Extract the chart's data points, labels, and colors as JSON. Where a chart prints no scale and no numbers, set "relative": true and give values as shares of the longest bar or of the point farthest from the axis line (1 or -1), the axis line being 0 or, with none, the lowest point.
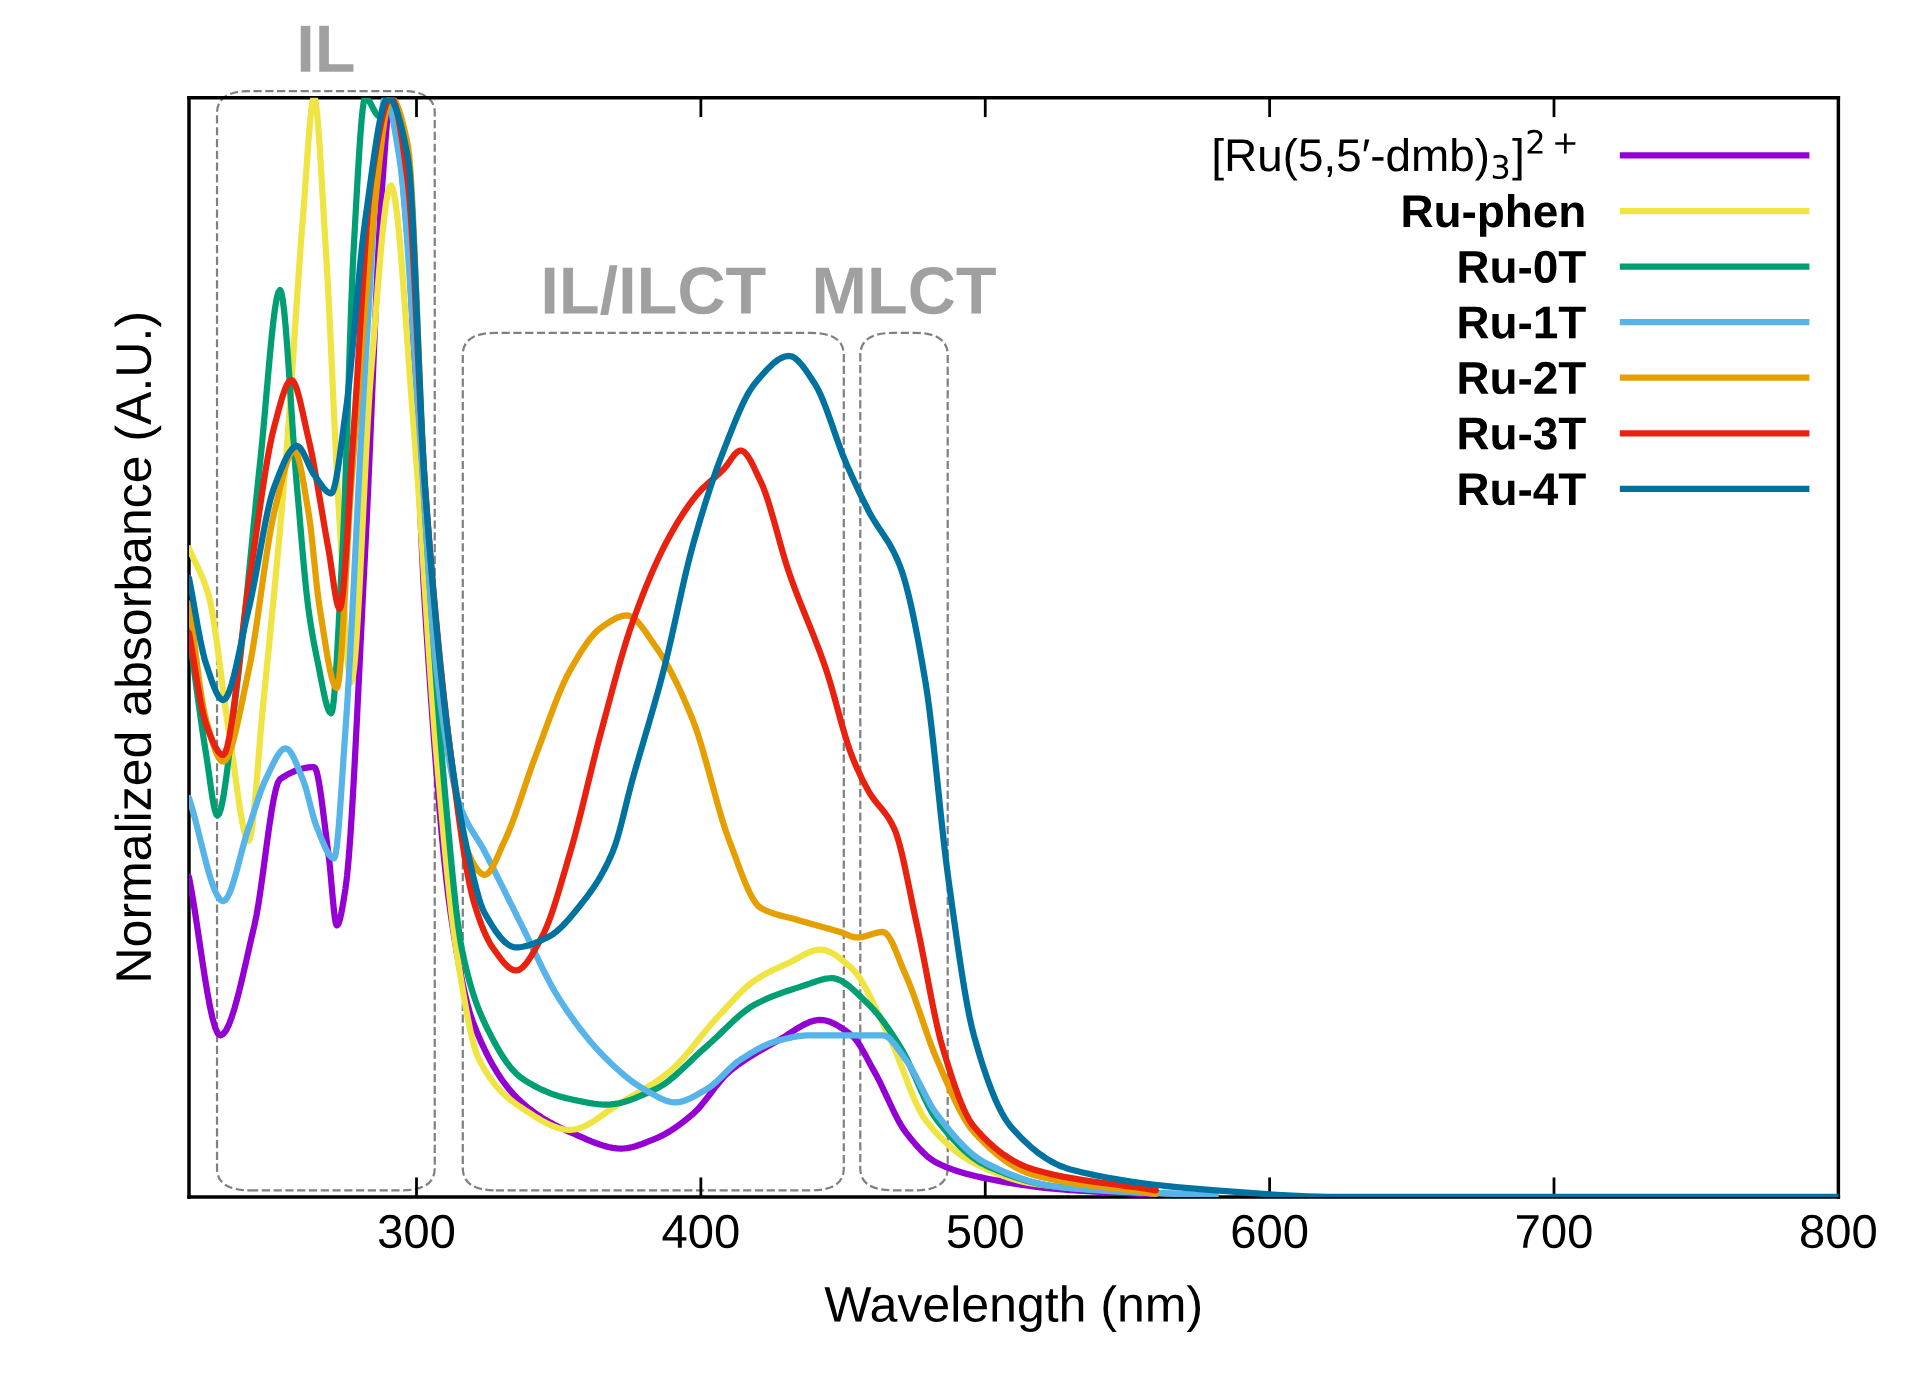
{
  "chart_data": {
    "type": "line",
    "relative": true,
    "xlabel": "Wavelength (nm)",
    "ylabel": "Normalized absorbance (A.U.)",
    "xlim": [
      220,
      800
    ],
    "xticks": [
      300,
      400,
      500,
      600,
      700,
      800
    ],
    "grid": false,
    "legend": "top right",
    "line_style": "solid",
    "tick_labels": "x",
    "annotations": [
      "IL",
      "IL/ILCT",
      "MLCT"
    ],
    "series": [
      {
        "name": "[Ru(5,5′-dmb)$_{3}$]$^{2+}$",
        "color": "#9400d3",
        "x": [
          220,
          231,
          243,
          252,
          264,
          269,
          272,
          275,
          282,
          288,
          291,
          297,
          303,
          312,
          320,
          337,
          354,
          372,
          384,
          397,
          410,
          427,
          442,
          453,
          461,
          472,
          483,
          500,
          526,
          560
        ],
        "values": [
          0.291,
          0.147,
          0.247,
          0.38,
          0.391,
          0.313,
          0.247,
          0.28,
          0.59,
          0.922,
          1.0,
          0.867,
          0.535,
          0.258,
          0.158,
          0.086,
          0.059,
          0.044,
          0.053,
          0.075,
          0.114,
          0.142,
          0.161,
          0.147,
          0.114,
          0.059,
          0.031,
          0.017,
          0.007,
          0.002
        ]
      },
      {
        "name": "Ru-phen",
        "color": "#f0e442",
        "x": [
          220,
          227,
          234,
          241,
          246,
          254,
          260,
          264,
          268,
          273,
          277,
          284,
          291,
          299,
          307,
          314,
          322,
          337,
          354,
          372,
          389,
          406,
          419,
          431,
          442,
          453,
          466,
          479,
          496,
          517,
          560
        ],
        "values": [
          0.59,
          0.546,
          0.424,
          0.324,
          0.446,
          0.668,
          0.889,
          1.0,
          0.867,
          0.612,
          0.468,
          0.75,
          0.92,
          0.701,
          0.403,
          0.225,
          0.125,
          0.081,
          0.061,
          0.086,
          0.114,
          0.164,
          0.197,
          0.213,
          0.225,
          0.208,
          0.147,
          0.07,
          0.031,
          0.012,
          0.003
        ]
      },
      {
        "name": "Ru-0T",
        "color": "#009e73",
        "x": [
          220,
          226,
          230,
          237,
          245,
          252,
          258,
          262,
          265,
          270,
          274,
          278,
          282,
          287,
          291,
          297,
          303,
          310,
          316,
          324,
          337,
          354,
          367,
          384,
          402,
          419,
          436,
          446,
          459,
          470,
          483,
          500,
          526,
          581
        ],
        "values": [
          0.513,
          0.403,
          0.347,
          0.468,
          0.668,
          0.825,
          0.645,
          0.535,
          0.49,
          0.44,
          0.589,
          0.867,
          1.0,
          0.983,
          1.0,
          0.889,
          0.623,
          0.368,
          0.225,
          0.158,
          0.108,
          0.089,
          0.084,
          0.098,
          0.137,
          0.175,
          0.192,
          0.199,
          0.175,
          0.137,
          0.07,
          0.029,
          0.009,
          0.001
        ]
      },
      {
        "name": "Ru-1T",
        "color": "#56b4e9",
        "x": [
          220,
          232,
          241,
          247,
          254,
          260,
          265,
          271,
          275,
          282,
          289,
          294,
          301,
          307,
          315,
          324,
          337,
          350,
          367,
          380,
          391,
          402,
          414,
          427,
          438,
          453,
          464,
          472,
          483,
          500,
          526,
          581
        ],
        "values": [
          0.363,
          0.269,
          0.336,
          0.38,
          0.408,
          0.38,
          0.336,
          0.308,
          0.424,
          0.757,
          1.0,
          0.945,
          0.701,
          0.48,
          0.358,
          0.314,
          0.247,
          0.181,
          0.125,
          0.098,
          0.086,
          0.098,
          0.125,
          0.142,
          0.147,
          0.147,
          0.147,
          0.125,
          0.075,
          0.031,
          0.009,
          0.001
        ]
      },
      {
        "name": "Ru-2T",
        "color": "#e69f00",
        "x": [
          220,
          226,
          232,
          241,
          250,
          257,
          262,
          266,
          272,
          277,
          284,
          291,
          297,
          303,
          312,
          318,
          324,
          331,
          342,
          354,
          365,
          374,
          384,
          397,
          410,
          421,
          434,
          449,
          455,
          464,
          472,
          483,
          496,
          517,
          560
        ],
        "values": [
          0.54,
          0.434,
          0.396,
          0.479,
          0.623,
          0.679,
          0.623,
          0.535,
          0.463,
          0.646,
          0.867,
          1.0,
          0.956,
          0.646,
          0.403,
          0.314,
          0.293,
          0.324,
          0.402,
          0.479,
          0.518,
          0.529,
          0.501,
          0.435,
          0.324,
          0.263,
          0.252,
          0.241,
          0.236,
          0.241,
          0.202,
          0.125,
          0.059,
          0.02,
          0.003
        ]
      },
      {
        "name": "Ru-3T",
        "color": "#e8220e",
        "x": [
          220,
          226,
          232,
          241,
          250,
          256,
          262,
          269,
          273,
          278,
          284,
          291,
          297,
          303,
          312,
          320,
          327,
          335,
          344,
          354,
          365,
          376,
          389,
          399,
          408,
          414,
          421,
          431,
          444,
          453,
          459,
          468,
          476,
          485,
          496,
          517,
          560
        ],
        "values": [
          0.513,
          0.43,
          0.402,
          0.557,
          0.701,
          0.743,
          0.69,
          0.59,
          0.535,
          0.701,
          0.922,
          1.0,
          0.922,
          0.646,
          0.403,
          0.27,
          0.226,
          0.206,
          0.236,
          0.313,
          0.424,
          0.523,
          0.601,
          0.64,
          0.662,
          0.679,
          0.651,
          0.568,
          0.48,
          0.402,
          0.369,
          0.335,
          0.247,
          0.136,
          0.064,
          0.025,
          0.006
        ]
      },
      {
        "name": "Ru-4T",
        "color": "#0072a0",
        "x": [
          220,
          226,
          232,
          241,
          250,
          258,
          264,
          270,
          275,
          282,
          290,
          297,
          303,
          312,
          318,
          324,
          335,
          346,
          359,
          369,
          376,
          387,
          397,
          408,
          419,
          431,
          440,
          451,
          459,
          470,
          479,
          487,
          496,
          509,
          530,
          581,
          624,
          800
        ],
        "values": [
          0.563,
          0.485,
          0.452,
          0.535,
          0.646,
          0.683,
          0.657,
          0.64,
          0.712,
          0.889,
          1.0,
          0.945,
          0.646,
          0.403,
          0.314,
          0.258,
          0.227,
          0.236,
          0.27,
          0.314,
          0.38,
          0.48,
          0.591,
          0.679,
          0.74,
          0.765,
          0.74,
          0.668,
          0.624,
          0.574,
          0.468,
          0.29,
          0.147,
          0.064,
          0.025,
          0.006,
          0.0,
          0.0
        ]
      }
    ]
  }
}
